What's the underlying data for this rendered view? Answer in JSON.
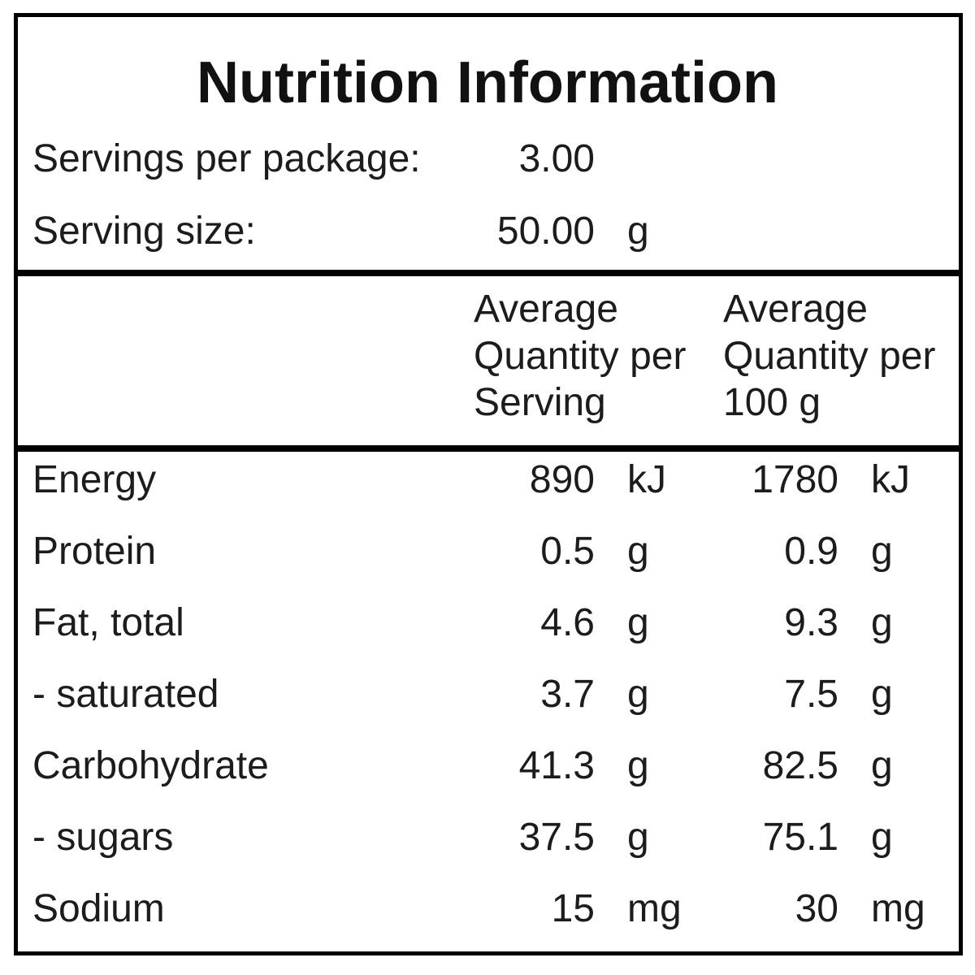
{
  "title": "Nutrition Information",
  "servings_per_package": {
    "label": "Servings per package:",
    "value": "3.00"
  },
  "serving_size": {
    "label": "Serving size:",
    "value": "50.00",
    "unit": "g"
  },
  "headers": {
    "per_serving": [
      "Average",
      "Quantity per",
      "Serving"
    ],
    "per_100g": [
      "Average",
      "Quantity per",
      "100 g"
    ]
  },
  "rows": [
    {
      "label": "Energy",
      "serving": "890",
      "serving_unit": "kJ",
      "per100": "1780",
      "per100_unit": "kJ"
    },
    {
      "label": "Protein",
      "serving": "0.5",
      "serving_unit": "g",
      "per100": "0.9",
      "per100_unit": "g"
    },
    {
      "label": "Fat, total",
      "serving": "4.6",
      "serving_unit": "g",
      "per100": "9.3",
      "per100_unit": "g"
    },
    {
      "label": "- saturated",
      "serving": "3.7",
      "serving_unit": "g",
      "per100": "7.5",
      "per100_unit": "g"
    },
    {
      "label": "Carbohydrate",
      "serving": "41.3",
      "serving_unit": "g",
      "per100": "82.5",
      "per100_unit": "g"
    },
    {
      "label": "- sugars",
      "serving": "37.5",
      "serving_unit": "g",
      "per100": "75.1",
      "per100_unit": "g"
    },
    {
      "label": "Sodium",
      "serving": "15",
      "serving_unit": "mg",
      "per100": "30",
      "per100_unit": "mg"
    }
  ]
}
